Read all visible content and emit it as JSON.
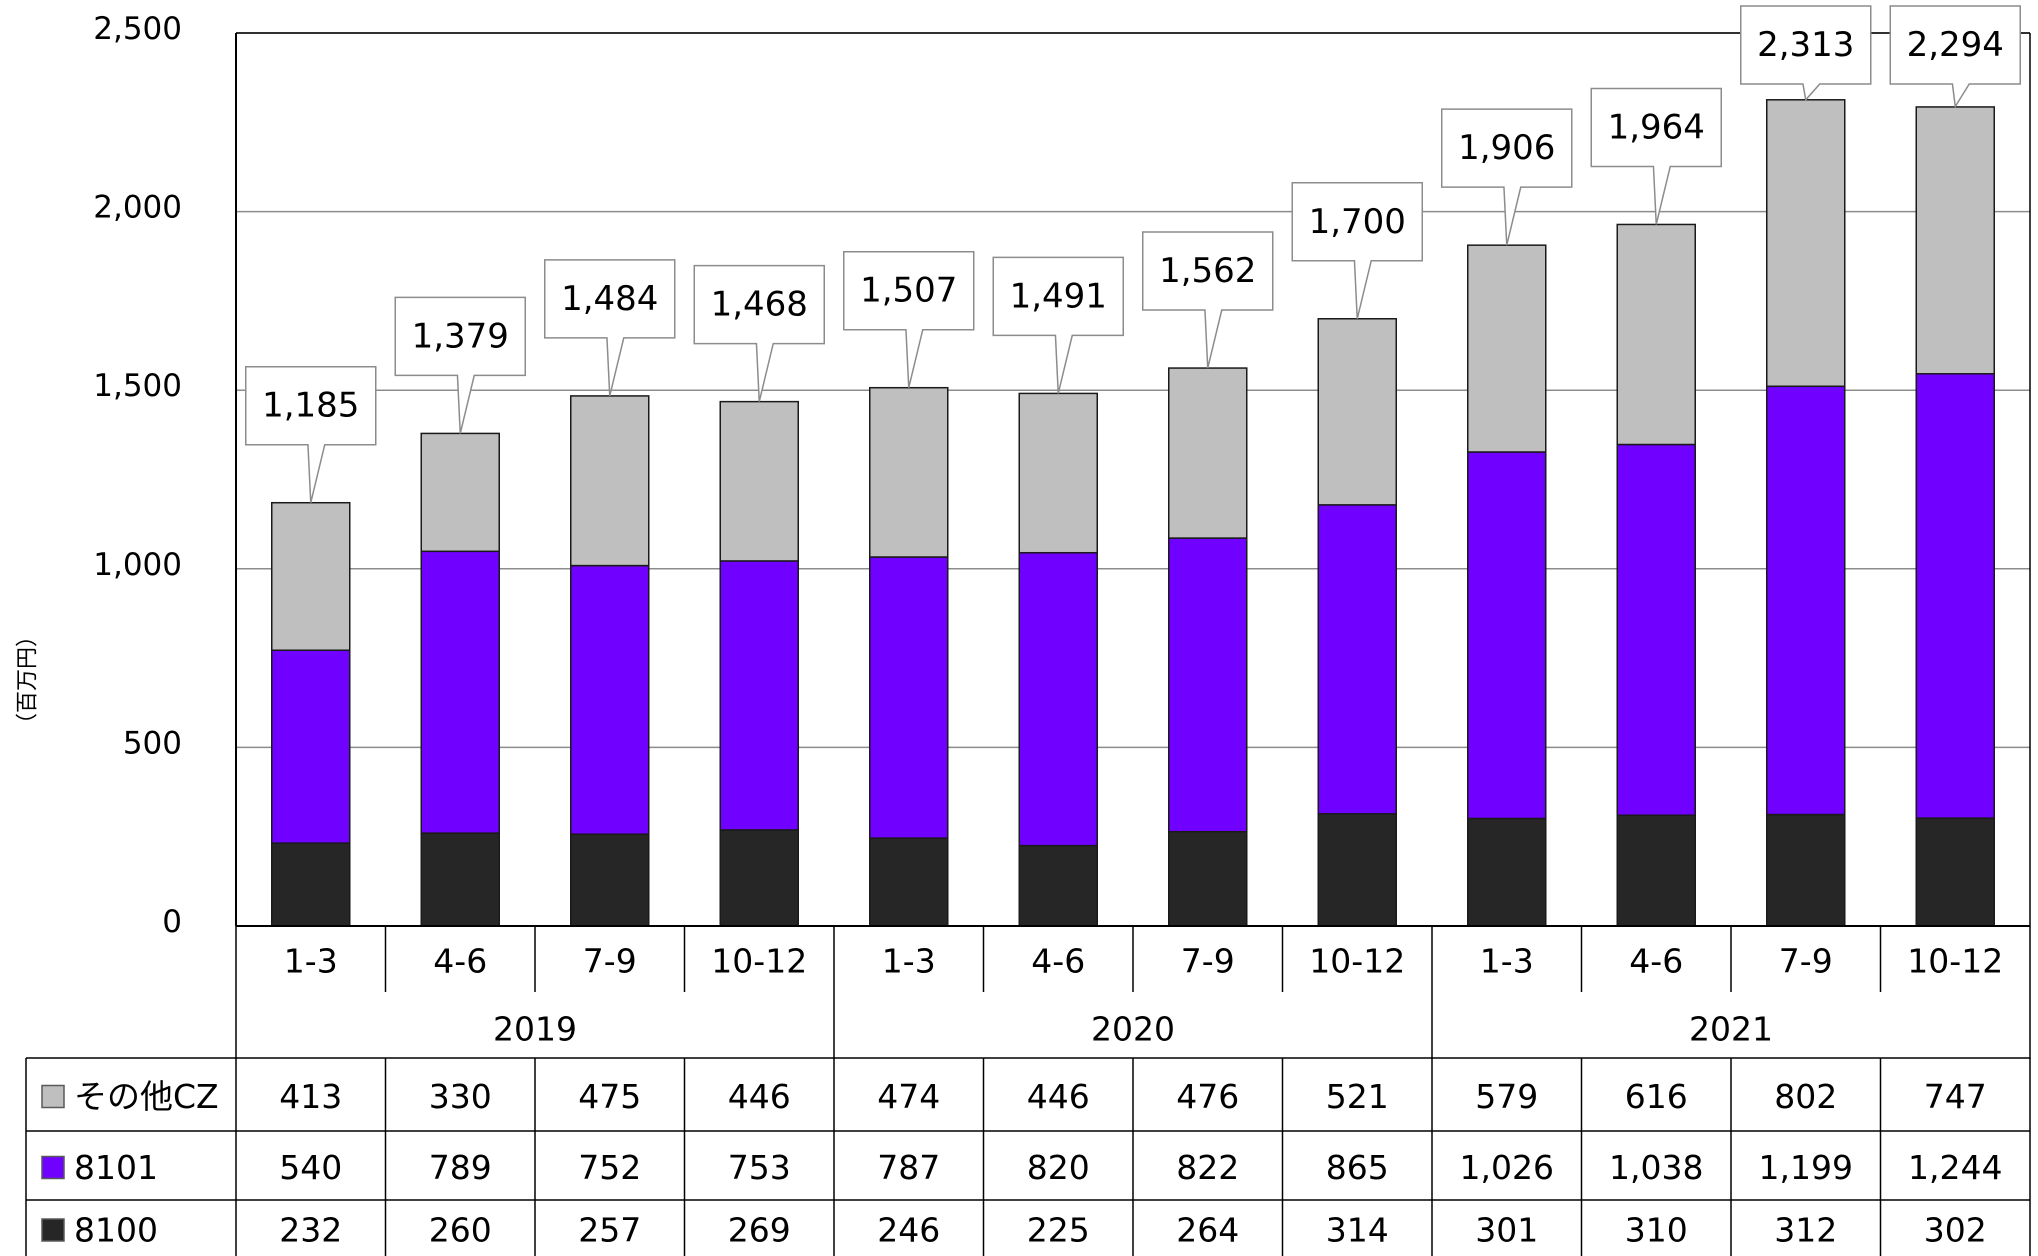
{
  "chart_data": {
    "type": "bar",
    "stacked": true,
    "ylabel": "（百万円）",
    "ylim": [
      0,
      2500
    ],
    "yticks": [
      "0",
      "500",
      "1,000",
      "1,500",
      "2,000",
      "2,500"
    ],
    "ytick_values": [
      0,
      500,
      1000,
      1500,
      2000,
      2500
    ],
    "grid": true,
    "categories": [
      "1-3",
      "4-6",
      "7-9",
      "10-12",
      "1-3",
      "4-6",
      "7-9",
      "10-12",
      "1-3",
      "4-6",
      "7-9",
      "10-12"
    ],
    "groups": [
      {
        "label": "2019",
        "count": 4
      },
      {
        "label": "2020",
        "count": 4
      },
      {
        "label": "2021",
        "count": 4
      }
    ],
    "series": [
      {
        "name": "8100",
        "color": "#262626",
        "values": [
          232,
          260,
          257,
          269,
          246,
          225,
          264,
          314,
          301,
          310,
          312,
          302
        ],
        "labels": [
          "232",
          "260",
          "257",
          "269",
          "246",
          "225",
          "264",
          "314",
          "301",
          "310",
          "312",
          "302"
        ]
      },
      {
        "name": "8101",
        "color": "#7000ff",
        "values": [
          540,
          789,
          752,
          753,
          787,
          820,
          822,
          865,
          1026,
          1038,
          1199,
          1244
        ],
        "labels": [
          "540",
          "789",
          "752",
          "753",
          "787",
          "820",
          "822",
          "865",
          "1,026",
          "1,038",
          "1,199",
          "1,244"
        ]
      },
      {
        "name": "その他CZ",
        "color": "#bfbfbf",
        "values": [
          413,
          330,
          475,
          446,
          474,
          446,
          476,
          521,
          579,
          616,
          802,
          747
        ],
        "labels": [
          "413",
          "330",
          "475",
          "446",
          "474",
          "446",
          "476",
          "521",
          "579",
          "616",
          "802",
          "747"
        ]
      }
    ],
    "table_row_order": [
      "その他CZ",
      "8101",
      "8100"
    ],
    "totals": [
      1185,
      1379,
      1484,
      1468,
      1507,
      1491,
      1562,
      1700,
      1906,
      1964,
      2313,
      2294
    ],
    "total_labels": [
      "1,185",
      "1,379",
      "1,484",
      "1,468",
      "1,507",
      "1,491",
      "1,562",
      "1,700",
      "1,906",
      "1,964",
      "2,313",
      "2,294"
    ]
  }
}
